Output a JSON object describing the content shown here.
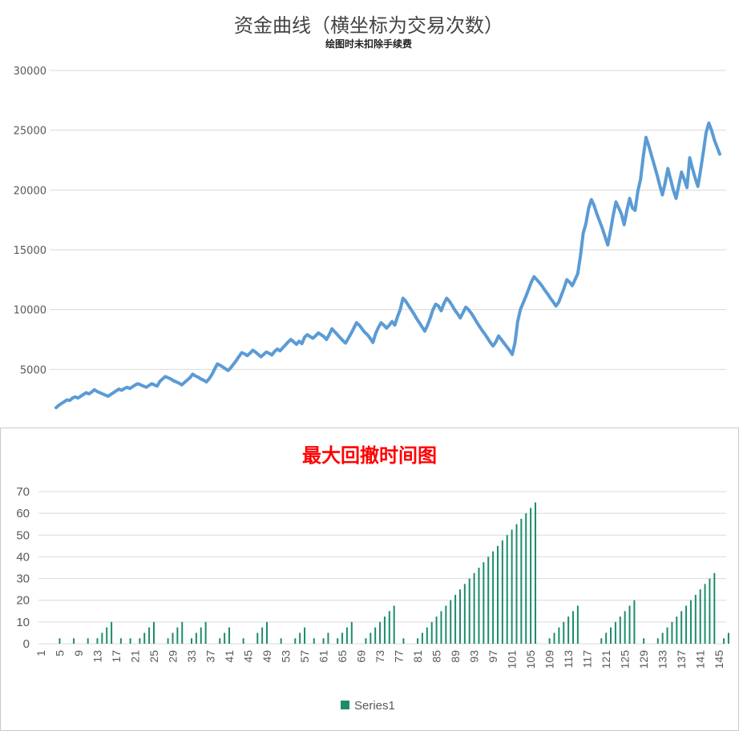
{
  "charts": [
    {
      "type": "line",
      "title": "资金曲线（横坐标为交易次数）",
      "subtitle": "绘图时未扣除手续费",
      "ylim": [
        0,
        30000
      ],
      "yticks": [
        "30000",
        "25000",
        "20000",
        "15000",
        "10000",
        "5000"
      ],
      "grid": true,
      "color": "#5b9bd5",
      "values": [
        1800,
        2000,
        2150,
        2300,
        2450,
        2400,
        2600,
        2700,
        2600,
        2750,
        2900,
        3050,
        2950,
        3100,
        3300,
        3150,
        3050,
        2950,
        2850,
        2750,
        2900,
        3050,
        3200,
        3350,
        3250,
        3400,
        3500,
        3400,
        3550,
        3700,
        3800,
        3700,
        3600,
        3500,
        3650,
        3800,
        3700,
        3600,
        4000,
        4200,
        4400,
        4300,
        4200,
        4050,
        3950,
        3850,
        3700,
        3900,
        4100,
        4300,
        4600,
        4450,
        4350,
        4200,
        4100,
        3950,
        4200,
        4550,
        5000,
        5450,
        5350,
        5200,
        5050,
        4900,
        5150,
        5450,
        5750,
        6100,
        6400,
        6300,
        6150,
        6350,
        6600,
        6450,
        6250,
        6050,
        6250,
        6450,
        6350,
        6200,
        6500,
        6700,
        6550,
        6800,
        7050,
        7300,
        7500,
        7300,
        7100,
        7350,
        7150,
        7700,
        7900,
        7750,
        7600,
        7800,
        8050,
        7900,
        7750,
        7500,
        7900,
        8400,
        8150,
        7900,
        7650,
        7400,
        7200,
        7600,
        8000,
        8450,
        8900,
        8700,
        8400,
        8100,
        7900,
        7600,
        7250,
        8000,
        8500,
        8900,
        8700,
        8450,
        8700,
        9000,
        8700,
        9400,
        10000,
        10950,
        10700,
        10350,
        10000,
        9650,
        9250,
        8900,
        8550,
        8200,
        8700,
        9300,
        10000,
        10450,
        10300,
        9900,
        10500,
        10950,
        10700,
        10350,
        9950,
        9650,
        9300,
        9750,
        10200,
        10000,
        9700,
        9350,
        8950,
        8600,
        8250,
        7950,
        7600,
        7250,
        6950,
        7300,
        7800,
        7500,
        7200,
        6900,
        6600,
        6250,
        7200,
        9000,
        10000,
        10550,
        11100,
        11700,
        12300,
        12750,
        12500,
        12250,
        11950,
        11600,
        11300,
        10950,
        10650,
        10300,
        10600,
        11200,
        11800,
        12500,
        12300,
        12000,
        12500,
        13000,
        14500,
        16400,
        17200,
        18500,
        19200,
        18700,
        18000,
        17400,
        16800,
        16100,
        15400,
        16600,
        17900,
        19000,
        18500,
        18000,
        17100,
        18300,
        19300,
        18500,
        18300,
        19900,
        20900,
        22800,
        24400,
        23700,
        22900,
        22100,
        21300,
        20400,
        19600,
        20600,
        21800,
        20900,
        20000,
        19300,
        20400,
        21500,
        20900,
        20200,
        22700,
        21800,
        21000,
        20300,
        21700,
        23200,
        24800,
        25600,
        25000,
        24200,
        23600,
        23000
      ]
    },
    {
      "type": "bar",
      "title": "最大回撤时间图",
      "ylim": [
        0,
        70
      ],
      "yticks": [
        "70",
        "60",
        "50",
        "40",
        "30",
        "20",
        "10",
        "0"
      ],
      "x_labels": [
        "1",
        "5",
        "9",
        "13",
        "17",
        "21",
        "25",
        "29",
        "33",
        "37",
        "41",
        "45",
        "49",
        "53",
        "57",
        "61",
        "65",
        "69",
        "73",
        "77",
        "81",
        "85",
        "89",
        "93",
        "97",
        "101",
        "105",
        "109",
        "113",
        "117",
        "121",
        "125",
        "129",
        "133",
        "137",
        "141",
        "145"
      ],
      "n_categories": 146,
      "grid": true,
      "color": "#1c8c6c",
      "legend": "Series1",
      "values": [
        0,
        0,
        0,
        0,
        2.5,
        0,
        0,
        2.5,
        0,
        0,
        2.5,
        0,
        2.5,
        5,
        7.5,
        10,
        0,
        2.5,
        0,
        2.5,
        0,
        2.5,
        5,
        7.5,
        10,
        0,
        0,
        2.5,
        5,
        7.5,
        10,
        0,
        2.5,
        5,
        7.5,
        10,
        0,
        0,
        2.5,
        5,
        7.5,
        0,
        0,
        2.5,
        0,
        0,
        5,
        7.5,
        10,
        0,
        0,
        2.5,
        0,
        0,
        2.5,
        5,
        7.5,
        0,
        2.5,
        0,
        2.5,
        5,
        0,
        2.5,
        5,
        7.5,
        10,
        0,
        0,
        2.5,
        5,
        7.5,
        10,
        12.5,
        15,
        17.5,
        0,
        2.5,
        0,
        0,
        2.5,
        5,
        7.5,
        10,
        12.5,
        15,
        17.5,
        20,
        22.5,
        25,
        27.5,
        30,
        32.5,
        35,
        37.5,
        40,
        42.5,
        45,
        47.5,
        50,
        52.5,
        55,
        57.5,
        60,
        62.5,
        65,
        0,
        0,
        2.5,
        5,
        7.5,
        10,
        12.5,
        15,
        17.5,
        0,
        0,
        0,
        0,
        2.5,
        5,
        7.5,
        10,
        12.5,
        15,
        17.5,
        20,
        0,
        2.5,
        0,
        0,
        2.5,
        5,
        7.5,
        10,
        12.5,
        15,
        17.5,
        20,
        22.5,
        25,
        27.5,
        30,
        32.5,
        0,
        2.5,
        5
      ]
    }
  ]
}
